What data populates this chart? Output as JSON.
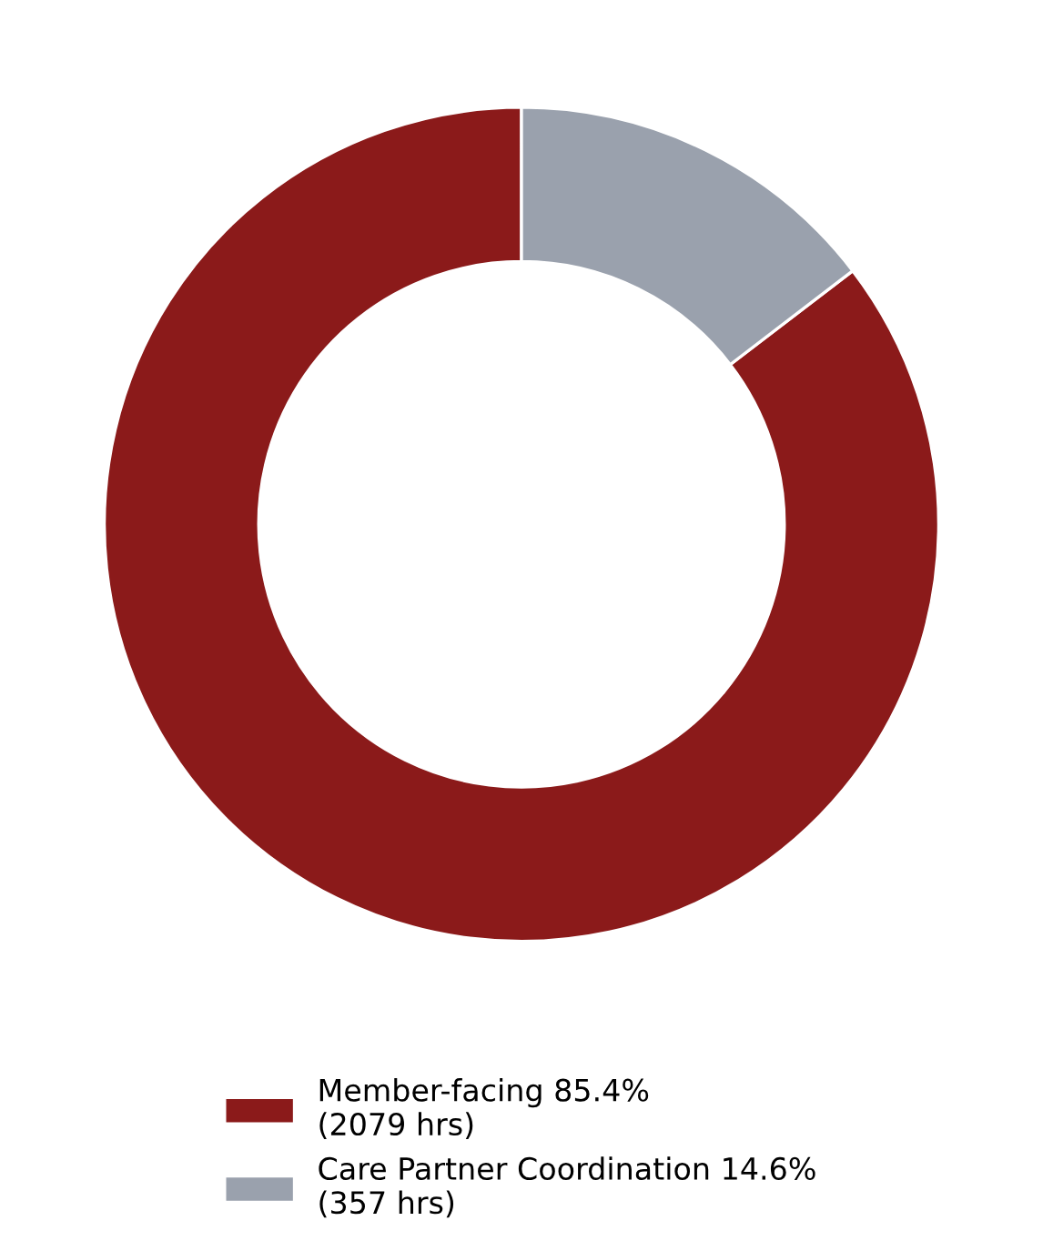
{
  "chart_data": {
    "type": "donut",
    "categories": [
      "Member-facing 85.4%\n(2079 hrs)",
      "Care Partner Coordination 14.6%\n(357 hrs)"
    ],
    "values": [
      85.4,
      14.6
    ],
    "colors": [
      "#8b1a1a",
      "#9aa1ad"
    ],
    "legend": "bottom"
  }
}
